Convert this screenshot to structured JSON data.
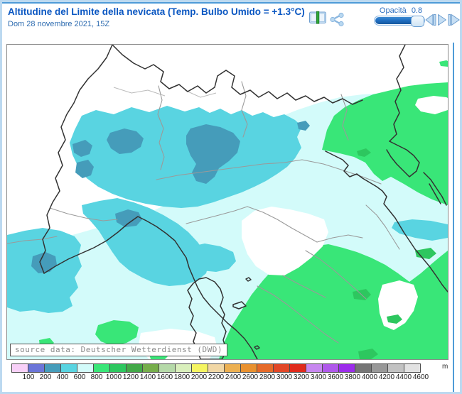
{
  "header": {
    "title": "Altitudine del Limite della nevicata (Temp. Bulbo Umido = +1.3°C)",
    "subtitle": "Dom 28 novembre 2021, 15Z"
  },
  "toolbar": {
    "opacity_label": "Opacità",
    "opacity_value": "0.8",
    "compare_button": "compare-layers",
    "share_button": "share",
    "nav_back": "step-back",
    "nav_play": "play",
    "nav_forward": "step-forward"
  },
  "map": {
    "source_label": "source data: Deutscher Wetterdienst (DWD)"
  },
  "legend": {
    "unit": "m",
    "ticks": [
      "100",
      "200",
      "400",
      "600",
      "800",
      "1000",
      "1200",
      "1400",
      "1600",
      "1800",
      "2000",
      "2200",
      "2400",
      "2600",
      "2800",
      "3000",
      "3200",
      "3400",
      "3600",
      "3800",
      "4000",
      "4200",
      "4400",
      "4600"
    ],
    "colors": [
      "#f8d0f8",
      "#6b75d8",
      "#459cba",
      "#59d4e1",
      "#d3fbfa",
      "#39e678",
      "#2dc75f",
      "#43a948",
      "#76ae4b",
      "#b5d9a8",
      "#d9efbc",
      "#f5f561",
      "#f1d7a5",
      "#ecb052",
      "#e9912f",
      "#e56a29",
      "#e24727",
      "#e02a1c",
      "#c787ef",
      "#b058eb",
      "#9c2ceb",
      "#757575",
      "#989898",
      "#c2c2c2",
      "#e2e2e2"
    ]
  },
  "colors": {
    "frame_outer": "#bcd9f0",
    "frame_line": "#4e9bd7",
    "title_blue": "#0b57c2",
    "subtitle_blue": "#2e6cb0",
    "control_blue": "#2d6fc0",
    "slider_fill": "#1f6fc3",
    "icon_lightblue": "#c7dff4",
    "icon_stroke": "#6f9fcf",
    "map_border": "#8c8c8c",
    "border_national": "#323232",
    "border_regional": "#9a9a9a",
    "map_lightcyan": "#d3fbfa",
    "map_cyan": "#59d4e1",
    "map_teal": "#459cba",
    "map_green": "#39e678",
    "map_darkgreen": "#2dc75f",
    "source_text": "#8a8a8a"
  }
}
